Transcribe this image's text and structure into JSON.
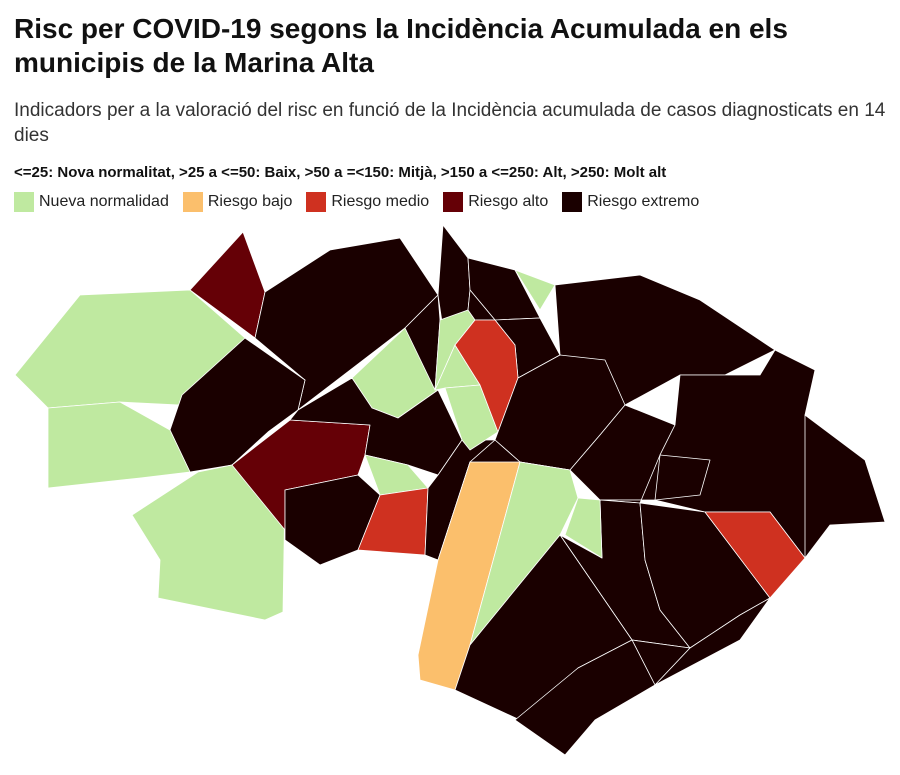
{
  "header": {
    "title": "Risc per COVID-19 segons la Incidència Acumulada en els municipis de la Marina Alta",
    "subtitle": "Indicadors per a la valoració del risc en funció de la Incidència acumulada de casos diagnosticats en 14 dies",
    "scale_note": "<=25: Nova normalitat, >25 a <=50: Baix, >50 a =<150: Mitjà, >150 a <=250: Alt, >250: Molt alt"
  },
  "legend": [
    {
      "key": "normal",
      "label": "Nueva normalidad",
      "color": "#bfe9a0"
    },
    {
      "key": "low",
      "label": "Riesgo bajo",
      "color": "#fbbf6c"
    },
    {
      "key": "medium",
      "label": "Riesgo medio",
      "color": "#cf3120"
    },
    {
      "key": "high",
      "label": "Riesgo alto",
      "color": "#650006"
    },
    {
      "key": "extreme",
      "label": "Riesgo extremo",
      "color": "#1a0000"
    }
  ],
  "map": {
    "municipality_risk_levels": [
      "high",
      "extreme",
      "normal",
      "extreme",
      "normal",
      "normal",
      "normal",
      "high",
      "extreme",
      "extreme",
      "normal",
      "extreme",
      "medium",
      "extreme",
      "extreme",
      "normal",
      "normal",
      "normal",
      "extreme",
      "normal",
      "extreme",
      "extreme",
      "extreme",
      "medium",
      "extreme",
      "extreme",
      "normal",
      "extreme",
      "extreme",
      "extreme",
      "extreme",
      "extreme",
      "extreme",
      "extreme",
      "extreme",
      "extreme",
      "low",
      "normal",
      "normal",
      "extreme",
      "extreme",
      "extreme",
      "medium",
      "extreme",
      "extreme"
    ]
  }
}
